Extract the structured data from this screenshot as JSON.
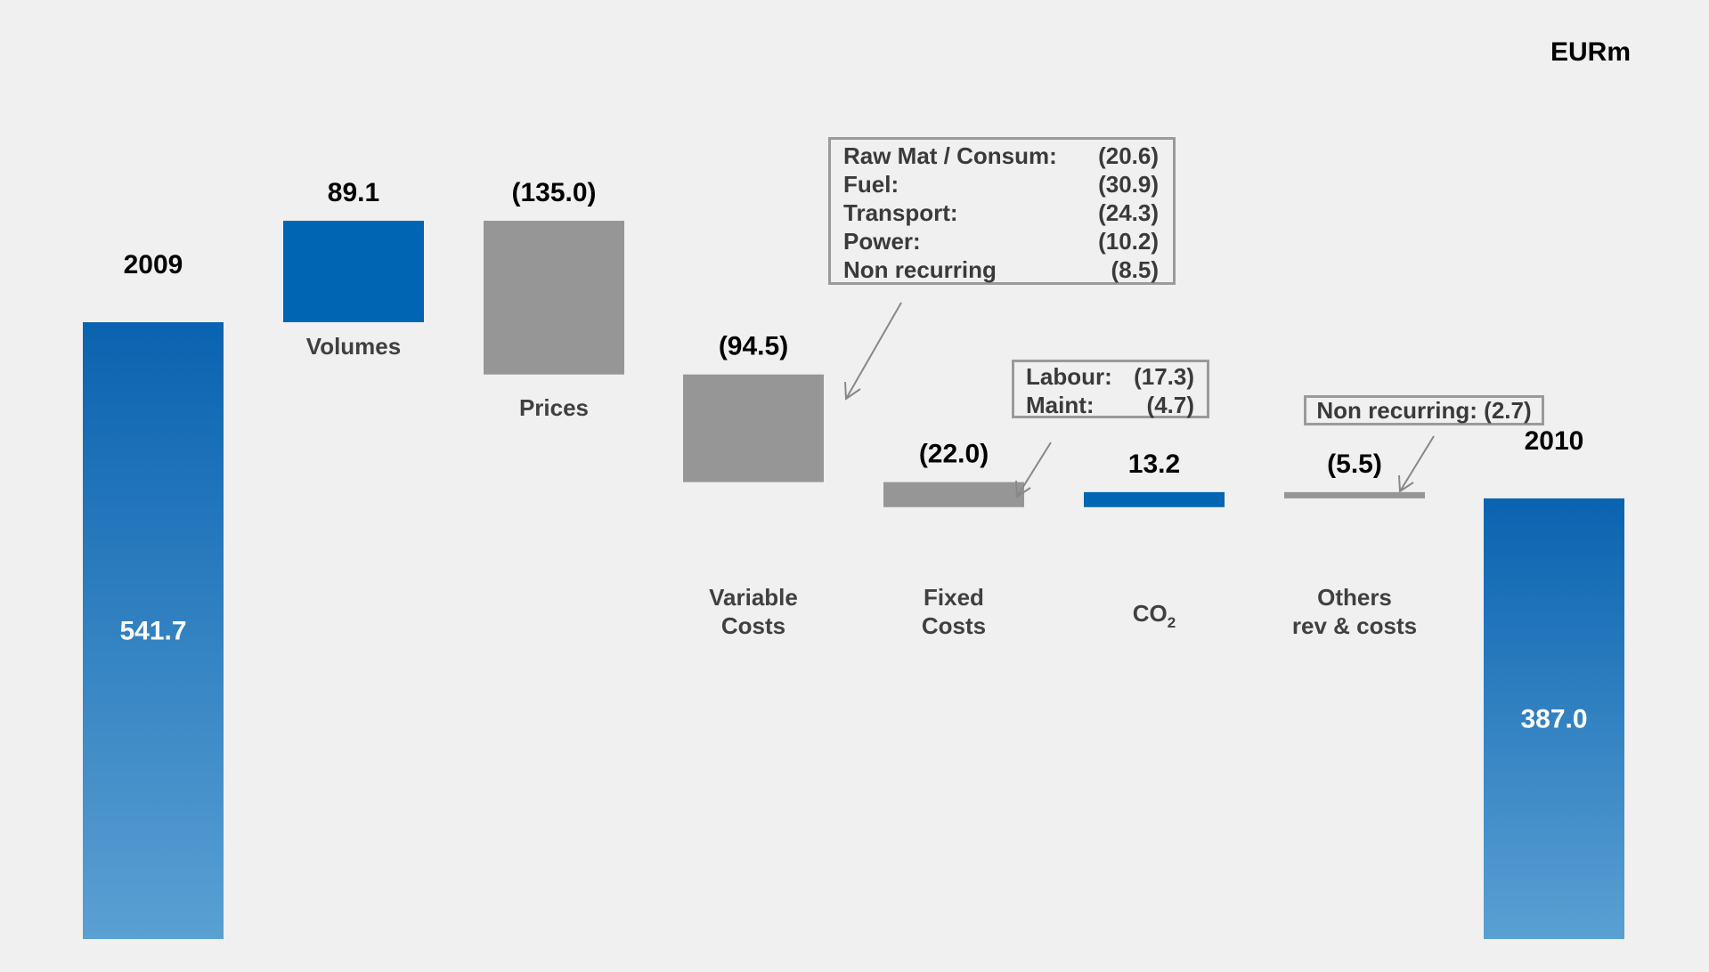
{
  "unit_label": "EURm",
  "chart_data": {
    "type": "bar",
    "subtype": "waterfall",
    "unit": "EURm",
    "categories": [
      "2009",
      "Volumes",
      "Prices",
      "Variable Costs",
      "Fixed Costs",
      "CO2",
      "Others rev & costs",
      "2010"
    ],
    "values": [
      541.7,
      89.1,
      -135.0,
      -94.5,
      -22.0,
      13.2,
      -5.5,
      387.0
    ],
    "value_labels": [
      "541.7",
      "89.1",
      "(135.0)",
      "(94.5)",
      "(22.0)",
      "13.2",
      "(5.5)",
      "387.0"
    ],
    "bar_kinds": [
      "total",
      "increase",
      "decrease",
      "decrease",
      "decrease",
      "increase",
      "decrease",
      "total"
    ],
    "category_labels": [
      [
        "2009"
      ],
      [
        "Volumes"
      ],
      [
        "Prices"
      ],
      [
        "Variable",
        "Costs"
      ],
      [
        "Fixed",
        "Costs"
      ],
      [
        "CO",
        "2"
      ],
      [
        "Others",
        "rev & costs"
      ],
      [
        "2010"
      ]
    ],
    "colors": {
      "total_top": "#0a63b0",
      "total_bottom": "#5aa0d3",
      "increase": "#0066b3",
      "decrease": "#969696"
    }
  },
  "annotations": {
    "variable_costs": [
      {
        "label": "Raw Mat / Consum:",
        "value": "(20.6)"
      },
      {
        "label": "Fuel:",
        "value": "(30.9)"
      },
      {
        "label": "Transport:",
        "value": "(24.3)"
      },
      {
        "label": "Power:",
        "value": "(10.2)"
      },
      {
        "label": "Non recurring",
        "value": "(8.5)"
      }
    ],
    "fixed_costs": [
      {
        "label": "Labour:",
        "value": "(17.3)"
      },
      {
        "label": "Maint:",
        "value": "(4.7)"
      }
    ],
    "others": {
      "text": "Non recurring: (2.7)"
    }
  }
}
